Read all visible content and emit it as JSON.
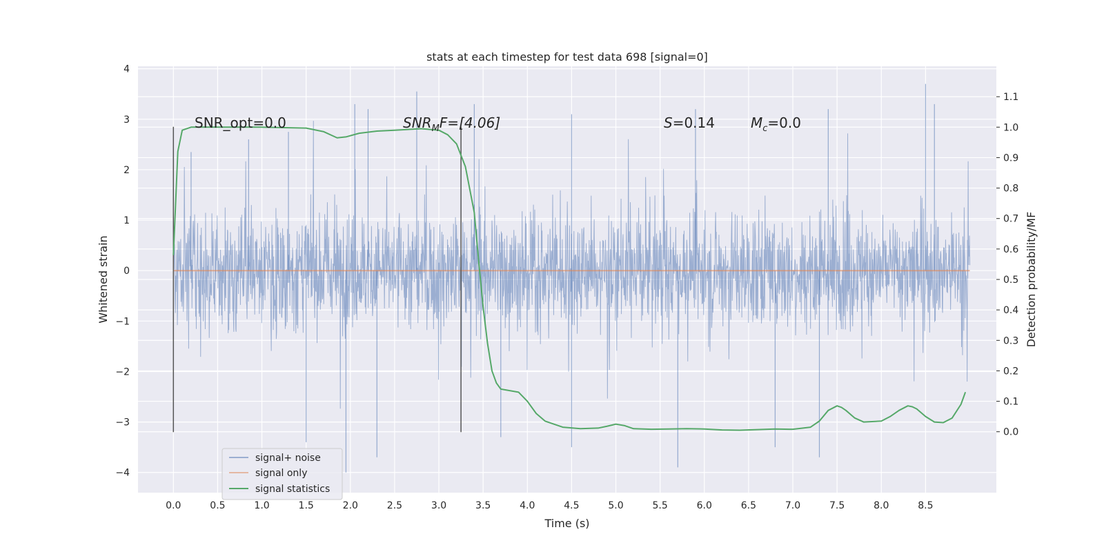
{
  "chart_data": {
    "type": "line",
    "title": "stats at each timestep for test data 698 [signal=0]",
    "xlabel": "Time (s)",
    "ylabel": "Whitened strain",
    "ylabel_right": "Detection probability/MF",
    "xlim": [
      -0.4,
      9.3
    ],
    "ylim": [
      -4.4,
      4.05
    ],
    "ylim_right": [
      -0.2,
      1.2
    ],
    "x_ticks": [
      "0.0",
      "0.5",
      "1.0",
      "1.5",
      "2.0",
      "2.5",
      "3.0",
      "3.5",
      "4.0",
      "4.5",
      "5.0",
      "5.5",
      "6.0",
      "6.5",
      "7.0",
      "7.5",
      "8.0",
      "8.5"
    ],
    "y_ticks": [
      "−4",
      "−3",
      "−2",
      "−1",
      "0",
      "1",
      "2",
      "3",
      "4"
    ],
    "y_ticks_right": [
      "0.0",
      "0.1",
      "0.2",
      "0.3",
      "0.4",
      "0.5",
      "0.6",
      "0.7",
      "0.8",
      "0.9",
      "1.0",
      "1.1"
    ],
    "legend": {
      "position": "lower-left"
    },
    "vlines": [
      0.0,
      3.25
    ],
    "vline_range": [
      -3.2,
      2.85
    ],
    "annotations": {
      "snr_opt": "SNR_opt=0.0",
      "snr_mf_base": "SNR",
      "snr_mf_sub": "M",
      "snr_mf_tail": "F=[4.06]",
      "s_var": "S",
      "s_val": "=0.14",
      "mc_var": "M",
      "mc_sub": "c",
      "mc_val": "=0.0"
    },
    "series": [
      {
        "name": "signal+ noise",
        "color": "#4c72b0",
        "axis": "left",
        "duration_s": 9.0,
        "typical_range": [
          -1.6,
          1.6
        ],
        "spike_peaks": [
          {
            "x": 0.2,
            "y": 2.35
          },
          {
            "x": 0.85,
            "y": 2.6
          },
          {
            "x": 1.3,
            "y": 2.75
          },
          {
            "x": 2.05,
            "y": 3.3
          },
          {
            "x": 2.2,
            "y": 3.2
          },
          {
            "x": 2.75,
            "y": 3.55
          },
          {
            "x": 3.4,
            "y": 3.3
          },
          {
            "x": 4.5,
            "y": 3.1
          },
          {
            "x": 5.9,
            "y": 3.2
          },
          {
            "x": 7.4,
            "y": 3.2
          },
          {
            "x": 8.5,
            "y": 3.7
          },
          {
            "x": 8.6,
            "y": 3.3
          },
          {
            "x": 1.5,
            "y": -3.4
          },
          {
            "x": 1.95,
            "y": -4.0
          },
          {
            "x": 2.3,
            "y": -3.7
          },
          {
            "x": 3.7,
            "y": -3.3
          },
          {
            "x": 4.5,
            "y": -3.5
          },
          {
            "x": 5.7,
            "y": -3.9
          },
          {
            "x": 6.8,
            "y": -3.5
          },
          {
            "x": 7.3,
            "y": -3.7
          }
        ]
      },
      {
        "name": "signal only",
        "color": "#dd8452",
        "axis": "left",
        "x": [
          0.0,
          9.0
        ],
        "y": [
          0.0,
          0.0
        ]
      },
      {
        "name": "signal statistics",
        "color": "#55a868",
        "axis": "right",
        "x": [
          0.0,
          0.05,
          0.1,
          0.2,
          0.3,
          0.5,
          1.0,
          1.5,
          1.7,
          1.85,
          1.95,
          2.1,
          2.3,
          2.5,
          2.8,
          3.0,
          3.1,
          3.2,
          3.3,
          3.4,
          3.45,
          3.5,
          3.55,
          3.6,
          3.65,
          3.7,
          3.8,
          3.9,
          4.0,
          4.1,
          4.2,
          4.4,
          4.6,
          4.8,
          4.9,
          5.0,
          5.1,
          5.2,
          5.4,
          5.6,
          5.8,
          6.0,
          6.2,
          6.4,
          6.6,
          6.8,
          7.0,
          7.2,
          7.3,
          7.4,
          7.5,
          7.55,
          7.6,
          7.7,
          7.8,
          8.0,
          8.1,
          8.2,
          8.3,
          8.35,
          8.4,
          8.5,
          8.6,
          8.7,
          8.8,
          8.9,
          8.95
        ],
        "y": [
          0.58,
          0.92,
          0.99,
          1.0,
          1.0,
          1.0,
          1.0,
          0.997,
          0.985,
          0.965,
          0.968,
          0.98,
          0.987,
          0.99,
          0.995,
          0.99,
          0.975,
          0.945,
          0.87,
          0.72,
          0.56,
          0.41,
          0.29,
          0.2,
          0.16,
          0.14,
          0.135,
          0.13,
          0.1,
          0.06,
          0.035,
          0.015,
          0.01,
          0.012,
          0.018,
          0.025,
          0.02,
          0.01,
          0.008,
          0.009,
          0.01,
          0.009,
          0.006,
          0.005,
          0.007,
          0.009,
          0.008,
          0.015,
          0.035,
          0.07,
          0.085,
          0.08,
          0.07,
          0.045,
          0.032,
          0.035,
          0.05,
          0.07,
          0.085,
          0.082,
          0.075,
          0.05,
          0.032,
          0.03,
          0.045,
          0.09,
          0.13
        ]
      }
    ]
  }
}
